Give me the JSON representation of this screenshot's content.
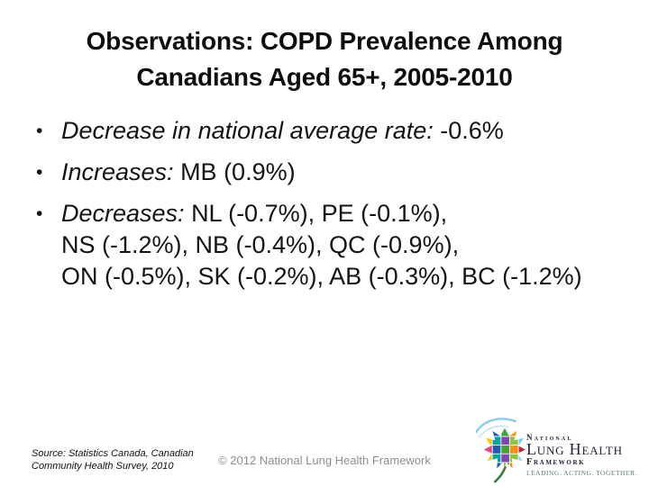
{
  "title": {
    "line1": "Observations: COPD Prevalence Among",
    "line2": "Canadians Aged 65+, 2005-2010"
  },
  "bullet_char": "•",
  "bullets": [
    {
      "lead": "Decrease in national average rate: ",
      "value": "-0.6%"
    },
    {
      "lead": "Increases: ",
      "value": "MB (0.9%)"
    },
    {
      "lead": "Decreases: ",
      "line1": "NL (-0.7%), PE (-0.1%),",
      "line2": "NS (-1.2%), NB (-0.4%), QC (-0.9%),",
      "line3": "ON (-0.5%), SK (-0.2%), AB (-0.3%), BC (-1.2%)"
    }
  ],
  "footer": {
    "source_line1": "Source: Statistics Canada, Canadian",
    "source_line2": "Community Health Survey, 2010",
    "copyright": "© 2012 National Lung Health Framework"
  },
  "logo": {
    "line1": "National",
    "line2": "Lung Health",
    "line3": "Framework",
    "tagline": "LEADING. ACTING. TOGETHER.",
    "colors": {
      "navy": "#23233f",
      "tagline": "#5b7d7d",
      "swoosh": "#8fcdec",
      "swoosh_light": "#c3e5f7",
      "stem": "#2e7d32",
      "leaf_pieces": [
        "#e5457b",
        "#2458b3",
        "#3fa535",
        "#f78f1e",
        "#c41e3a",
        "#ffc20e",
        "#00a6a6",
        "#8246af",
        "#8dc63f",
        "#6dcff6"
      ]
    }
  },
  "colors": {
    "background": "#ffffff",
    "title_text": "#0d0d0d",
    "body_text": "#141414",
    "copyright_text": "#8f8f8f"
  }
}
